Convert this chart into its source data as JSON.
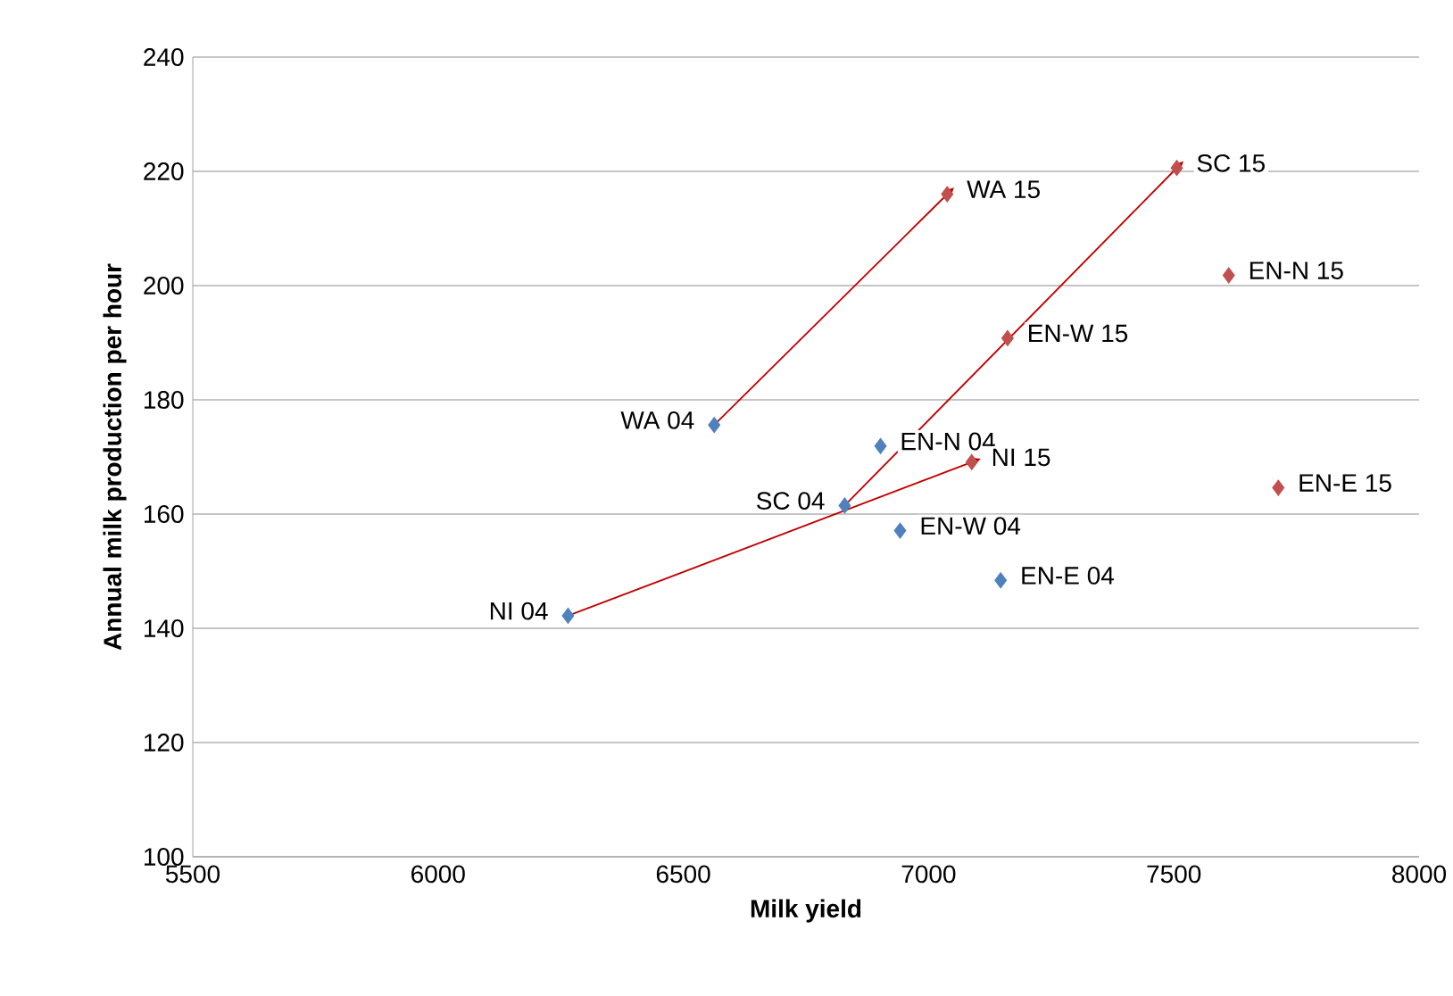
{
  "chart_data": {
    "type": "scatter",
    "xlabel": "Milk yield",
    "ylabel": "Annual milk production per hour",
    "xlim": [
      5500,
      8000
    ],
    "xticks": [
      5500,
      6000,
      6500,
      7000,
      7500,
      8000
    ],
    "ylim": [
      100,
      240
    ],
    "yticks": [
      100,
      120,
      140,
      160,
      180,
      200,
      220,
      240
    ],
    "grid": "y",
    "marker": "diamond",
    "series": [
      {
        "color": "#4f81bd",
        "x": [
          6265,
          6563,
          6829,
          6902,
          6942,
          7147
        ],
        "values": [
          142.2,
          175.6,
          161.5,
          171.9,
          157.1,
          148.4
        ]
      },
      {
        "color": "#c0504d",
        "x": [
          7088,
          7161,
          7038,
          7506,
          7612,
          7713
        ],
        "values": [
          169.1,
          190.8,
          216.0,
          220.6,
          201.8,
          164.6
        ]
      },
      {
        "type": "line",
        "color": "#c00000",
        "x": [
          6563,
          7038
        ],
        "values": [
          175.6,
          216.0
        ]
      },
      {
        "type": "line",
        "color": "#c00000",
        "x": [
          6829,
          7506
        ],
        "values": [
          161.5,
          220.6
        ]
      },
      {
        "type": "line",
        "color": "#c00000",
        "x": [
          6265,
          7088
        ],
        "values": [
          142.2,
          169.1
        ]
      }
    ],
    "annotations": [
      {
        "text": "NI 04",
        "x": 6265,
        "y": 142.2
      },
      {
        "text": "WA 04",
        "x": 6563,
        "y": 175.6
      },
      {
        "text": "SC 04",
        "x": 6829,
        "y": 161.5
      },
      {
        "text": "EN-N 04",
        "x": 6902,
        "y": 171.9
      },
      {
        "text": "EN-W 04",
        "x": 6942,
        "y": 157.1
      },
      {
        "text": "EN-E 04",
        "x": 7147,
        "y": 148.4
      },
      {
        "text": "NI 15",
        "x": 7088,
        "y": 169.1
      },
      {
        "text": "EN-W 15",
        "x": 7161,
        "y": 190.8
      },
      {
        "text": "WA 15",
        "x": 7038,
        "y": 216.0
      },
      {
        "text": "SC 15",
        "x": 7506,
        "y": 220.6
      },
      {
        "text": "EN-N 15",
        "x": 7612,
        "y": 201.8
      },
      {
        "text": "EN-E 15",
        "x": 7713,
        "y": 164.6
      }
    ]
  }
}
